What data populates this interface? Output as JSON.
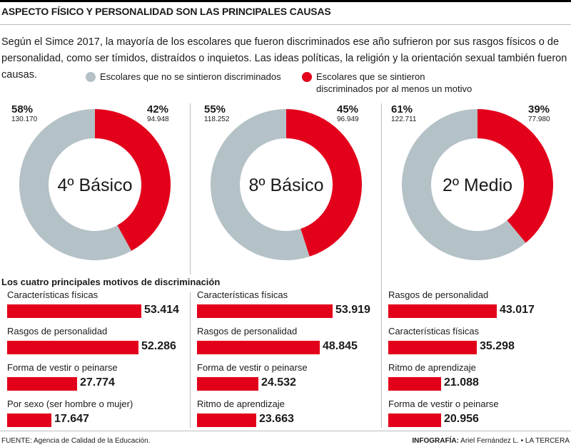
{
  "header": {
    "title": "ASPECTO FÍSICO Y PERSONALIDAD SON LAS PRINCIPALES CAUSAS",
    "intro": "Según el Simce 2017, la mayoría de los escolares que fueron discriminados ese año sufrieron por sus rasgos físicos o de personalidad, como ser tímidos, distraídos o inquietos. Las ideas políticas, la religión y la orientación sexual también fueron causas."
  },
  "legend": {
    "not_discriminated": {
      "label": "Escolares que no se sintieron discriminados",
      "color": "#b4c1c6"
    },
    "discriminated": {
      "label": "Escolares que se sintieron discriminados por al menos un motivo",
      "color": "#e3001b"
    }
  },
  "motives_heading": "Los cuatro principales motivos de discriminación",
  "chart_data": [
    {
      "type": "pie",
      "title": "4º Básico",
      "slices": [
        {
          "name": "Escolares que se sintieron discriminados por al menos un motivo",
          "percent": "42%",
          "count": "94.948",
          "value": 42,
          "color": "#e3001b"
        },
        {
          "name": "Escolares que no se sintieron discriminados",
          "percent": "58%",
          "count": "130.170",
          "value": 58,
          "color": "#b4c1c6"
        }
      ]
    },
    {
      "type": "pie",
      "title": "8º Básico",
      "slices": [
        {
          "name": "Escolares que se sintieron discriminados por al menos un motivo",
          "percent": "45%",
          "count": "96.949",
          "value": 45,
          "color": "#e3001b"
        },
        {
          "name": "Escolares que no se sintieron discriminados",
          "percent": "55%",
          "count": "118.252",
          "value": 55,
          "color": "#b4c1c6"
        }
      ]
    },
    {
      "type": "pie",
      "title": "2º Medio",
      "slices": [
        {
          "name": "Escolares que se sintieron discriminados por al menos un motivo",
          "percent": "39%",
          "count": "77.980",
          "value": 39,
          "color": "#e3001b"
        },
        {
          "name": "Escolares que no se sintieron discriminados",
          "percent": "61%",
          "count": "122.711",
          "value": 61,
          "color": "#b4c1c6"
        }
      ]
    },
    {
      "type": "bar",
      "group": "4º Básico",
      "categories": [
        "Características físicas",
        "Rasgos de personalidad",
        "Forma de vestir o peinarse",
        "Por sexo (ser hombre o mujer)"
      ],
      "values": [
        53414,
        52286,
        27774,
        17647
      ],
      "labels": [
        "53.414",
        "52.286",
        "27.774",
        "17.647"
      ]
    },
    {
      "type": "bar",
      "group": "8º Básico",
      "categories": [
        "Características físicas",
        "Rasgos de personalidad",
        "Forma de vestir o peinarse",
        "Ritmo de aprendizaje"
      ],
      "values": [
        53919,
        48845,
        24532,
        23663
      ],
      "labels": [
        "53.919",
        "48.845",
        "24.532",
        "23.663"
      ]
    },
    {
      "type": "bar",
      "group": "2º Medio",
      "categories": [
        "Rasgos de personalidad",
        "Características físicas",
        "Ritmo de aprendizaje",
        "Forma de vestir o peinarse"
      ],
      "values": [
        43017,
        35298,
        21088,
        20956
      ],
      "labels": [
        "43.017",
        "35.298",
        "21.088",
        "20.956"
      ]
    }
  ],
  "footer": {
    "source": "FUENTE: Agencia de Calidad de la Educación.",
    "credit_label": "INFOGRAFÍA:",
    "credit_text": " Ariel Fernández L. • LA TERCERA"
  }
}
